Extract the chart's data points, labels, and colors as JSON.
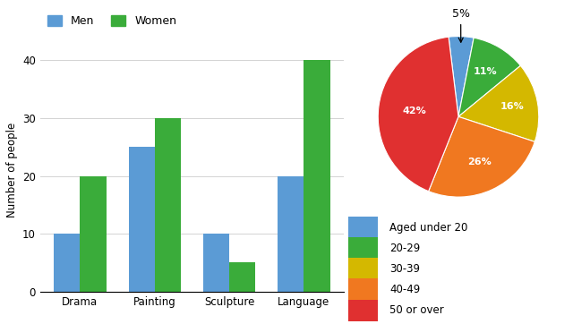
{
  "bar_categories": [
    "Drama",
    "Painting",
    "Sculpture",
    "Language"
  ],
  "men_values": [
    10,
    25,
    10,
    20
  ],
  "women_values": [
    20,
    30,
    5,
    40
  ],
  "men_color": "#5b9bd5",
  "women_color": "#3aac3a",
  "bar_ylabel": "Number of people",
  "bar_yticks": [
    0,
    10,
    20,
    30,
    40
  ],
  "bar_ylim": [
    0,
    42
  ],
  "pie_values": [
    5,
    11,
    16,
    26,
    42
  ],
  "pie_labels_inside": [
    "",
    "11%",
    "16%",
    "26%",
    "42%"
  ],
  "pie_label_outside": "5%",
  "pie_colors": [
    "#5b9bd5",
    "#3aac3a",
    "#d4b800",
    "#f07820",
    "#e03030"
  ],
  "pie_legend_labels": [
    "Aged under 20",
    "20-29",
    "30-39",
    "40-49",
    "50 or over"
  ],
  "background_color": "#ffffff",
  "legend_men": "Men",
  "legend_women": "Women",
  "pie_startangle": 97,
  "pie_label_radii": [
    0,
    0.65,
    0.68,
    0.62,
    0.55
  ]
}
